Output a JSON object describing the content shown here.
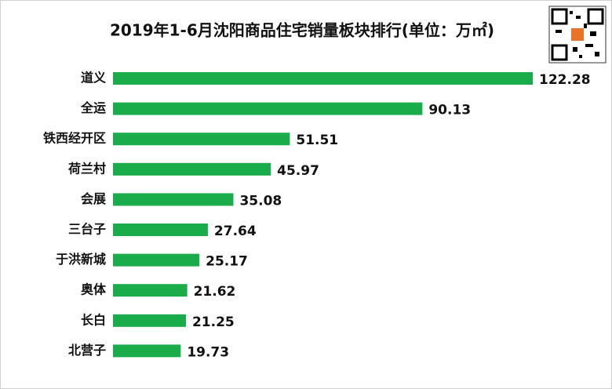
{
  "chart_data": {
    "type": "bar",
    "orientation": "horizontal",
    "title": "2019年1-6月沈阳商品住宅销量板块排行(单位：万㎡)",
    "categories": [
      "道义",
      "全运",
      "铁西经开区",
      "荷兰村",
      "会展",
      "三台子",
      "于洪新城",
      "奥体",
      "长白",
      "北营子"
    ],
    "values": [
      122.28,
      90.13,
      51.51,
      45.97,
      35.08,
      27.64,
      25.17,
      21.62,
      21.25,
      19.73
    ],
    "color": "#1aab4a"
  }
}
